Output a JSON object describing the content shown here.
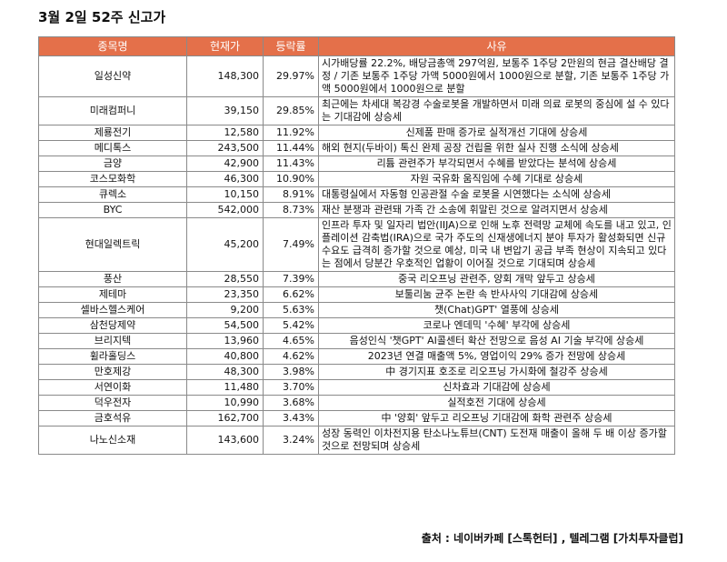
{
  "title": "3월 2일 52주 신고가",
  "headers": [
    "종목명",
    "현재가",
    "등락률",
    "사유"
  ],
  "rows": [
    {
      "name": "일성신약",
      "price": "148,300",
      "change": "29.97%",
      "reason": "시가배당률 22.2%, 배당금총액 297억원, 보통주 1주당 2만원의 현금 결산배당 결정 / 기존 보통주 1주당 가액 5000원에서 1000원으로 분할, 기존 보통주 1주당 가액 5000원에서 1000원으로 분할",
      "align": "l"
    },
    {
      "name": "미래컴퍼니",
      "price": "39,150",
      "change": "29.85%",
      "reason": "최근에는 차세대 복강경 수술로봇을 개발하면서 미래 의료 로봇의 중심에 설 수 있다는 기대감에 상승세",
      "align": "l"
    },
    {
      "name": "제룡전기",
      "price": "12,580",
      "change": "11.92%",
      "reason": "신제품 판매 증가로 실적개선 기대에 상승세",
      "align": "c"
    },
    {
      "name": "메디톡스",
      "price": "243,500",
      "change": "11.44%",
      "reason": "해외 현지(두바이) 톡신 완제 공장 건립을 위한 실사 진행 소식에 상승세",
      "align": "l"
    },
    {
      "name": "금양",
      "price": "42,900",
      "change": "11.43%",
      "reason": "리튬 관련주가 부각되면서 수혜를 받았다는 분석에 상승세",
      "align": "c"
    },
    {
      "name": "코스모화학",
      "price": "46,300",
      "change": "10.90%",
      "reason": "자원 국유화 움직임에 수혜 기대로 상승세",
      "align": "c"
    },
    {
      "name": "큐렉소",
      "price": "10,150",
      "change": "8.91%",
      "reason": "대통령실에서 자동형 인공관절 수술 로봇을 시연했다는 소식에 상승세",
      "align": "l"
    },
    {
      "name": "BYC",
      "price": "542,000",
      "change": "8.73%",
      "reason": "재산 분쟁과 관련돼 가족 간 소송에 휘말린 것으로 알려지면서 상승세",
      "align": "l"
    },
    {
      "name": "현대일렉트릭",
      "price": "45,200",
      "change": "7.49%",
      "reason": "인프라 투자 및 일자리 법안(IIJA)으로 인해 노후 전력망 교체에 속도를 내고 있고, 인플레이션 감축법(IRA)으로 국가 주도의 신재생에너지 분야 투자가 활성화되면 신규 수요도 급격히 증가할 것으로 예상, 미국 내 변압기 공급 부족 현상이 지속되고 있다는 점에서 당분간 우호적인 업황이 이어질 것으로 기대되며 상승세",
      "align": "l"
    },
    {
      "name": "풍산",
      "price": "28,550",
      "change": "7.39%",
      "reason": "중국 리오프닝 관련주, 양회 개막 앞두고 상승세",
      "align": "c"
    },
    {
      "name": "제테마",
      "price": "23,350",
      "change": "6.62%",
      "reason": "보툴리눔 균주 논란 속 반사사익 기대감에 상승세",
      "align": "c"
    },
    {
      "name": "셀바스헬스케어",
      "price": "9,200",
      "change": "5.63%",
      "reason": "챗(Chat)GPT' 열풍에 상승세",
      "align": "c"
    },
    {
      "name": "삼천당제약",
      "price": "54,500",
      "change": "5.42%",
      "reason": "코로나 엔데믹 '수혜' 부각에 상승세",
      "align": "c"
    },
    {
      "name": "브리지텍",
      "price": "13,960",
      "change": "4.65%",
      "reason": "음성인식 '챗GPT' AI콜센터 확산 전망으로 음성 AI 기술 부각에 상승세",
      "align": "c"
    },
    {
      "name": "휠라홀딩스",
      "price": "40,800",
      "change": "4.62%",
      "reason": "2023년 연결 매출액 5%, 영업이익 29% 증가 전망에 상승세",
      "align": "c"
    },
    {
      "name": "만호제강",
      "price": "48,300",
      "change": "3.98%",
      "reason": "中 경기지표 호조로 리오프닝 가시화에 철강주 상승세",
      "align": "c"
    },
    {
      "name": "서연이화",
      "price": "11,480",
      "change": "3.70%",
      "reason": "신차효과 기대감에 상승세",
      "align": "c"
    },
    {
      "name": "덕우전자",
      "price": "10,990",
      "change": "3.68%",
      "reason": "실적호전 기대에 상승세",
      "align": "c"
    },
    {
      "name": "금호석유",
      "price": "162,700",
      "change": "3.43%",
      "reason": "中 '양회' 앞두고 리오프닝 기대감에 화학 관련주 상승세",
      "align": "c"
    },
    {
      "name": "나노신소재",
      "price": "143,600",
      "change": "3.24%",
      "reason": "성장 동력인 이차전지용 탄소나노튜브(CNT) 도전재 매출이 올해 두 배 이상 증가할 것으로 전망되며 상승세",
      "align": "l"
    }
  ],
  "source": "출처 : 네이버카페 [스톡헌터] , 텔레그램 [가치투자클럽]"
}
